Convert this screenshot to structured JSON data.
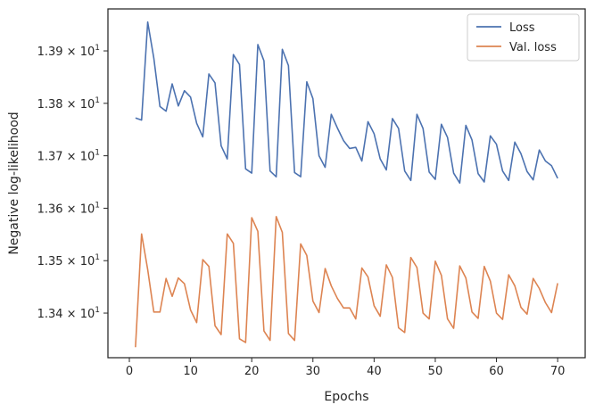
{
  "chart_data": {
    "type": "line",
    "xlabel": "Epochs",
    "ylabel": "Negative log-likelihood",
    "xlim": [
      -3.5,
      74.5
    ],
    "ylim": [
      13.315,
      13.98
    ],
    "x_ticks": [
      0,
      10,
      20,
      30,
      40,
      50,
      60,
      70
    ],
    "y_ticks": [
      {
        "value": 13.4,
        "mantissa": "1.34",
        "base": "10",
        "exp": "1"
      },
      {
        "value": 13.5,
        "mantissa": "1.35",
        "base": "10",
        "exp": "1"
      },
      {
        "value": 13.6,
        "mantissa": "1.36",
        "base": "10",
        "exp": "1"
      },
      {
        "value": 13.7,
        "mantissa": "1.37",
        "base": "10",
        "exp": "1"
      },
      {
        "value": 13.8,
        "mantissa": "1.38",
        "base": "10",
        "exp": "1"
      },
      {
        "value": 13.9,
        "mantissa": "1.39",
        "base": "10",
        "exp": "1"
      }
    ],
    "grid": false,
    "legend_position": "top-right",
    "x": [
      1,
      2,
      3,
      4,
      5,
      6,
      7,
      8,
      9,
      10,
      11,
      12,
      13,
      14,
      15,
      16,
      17,
      18,
      19,
      20,
      21,
      22,
      23,
      24,
      25,
      26,
      27,
      28,
      29,
      30,
      31,
      32,
      33,
      34,
      35,
      36,
      37,
      38,
      39,
      40,
      41,
      42,
      43,
      44,
      45,
      46,
      47,
      48,
      49,
      50,
      51,
      52,
      53,
      54,
      55,
      56,
      57,
      58,
      59,
      60,
      61,
      62,
      63,
      64,
      65,
      66,
      67,
      68,
      69,
      70
    ],
    "series": [
      {
        "name": "Loss",
        "color": "#4c72b0",
        "values": [
          13.772,
          13.768,
          13.955,
          13.886,
          13.794,
          13.785,
          13.837,
          13.795,
          13.824,
          13.812,
          13.762,
          13.736,
          13.856,
          13.839,
          13.719,
          13.694,
          13.893,
          13.874,
          13.675,
          13.667,
          13.912,
          13.881,
          13.671,
          13.66,
          13.903,
          13.872,
          13.668,
          13.66,
          13.841,
          13.809,
          13.7,
          13.678,
          13.779,
          13.753,
          13.729,
          13.714,
          13.716,
          13.69,
          13.765,
          13.742,
          13.694,
          13.673,
          13.771,
          13.752,
          13.671,
          13.653,
          13.779,
          13.752,
          13.669,
          13.655,
          13.76,
          13.735,
          13.667,
          13.648,
          13.758,
          13.73,
          13.666,
          13.65,
          13.738,
          13.722,
          13.671,
          13.653,
          13.726,
          13.704,
          13.67,
          13.654,
          13.711,
          13.69,
          13.681,
          13.657
        ]
      },
      {
        "name": "Val. loss",
        "color": "#dd8452",
        "values": [
          13.335,
          13.551,
          13.483,
          13.402,
          13.402,
          13.466,
          13.432,
          13.467,
          13.456,
          13.406,
          13.382,
          13.502,
          13.489,
          13.376,
          13.359,
          13.551,
          13.533,
          13.351,
          13.344,
          13.582,
          13.556,
          13.366,
          13.348,
          13.584,
          13.554,
          13.361,
          13.348,
          13.532,
          13.51,
          13.423,
          13.401,
          13.485,
          13.452,
          13.428,
          13.41,
          13.41,
          13.389,
          13.486,
          13.469,
          13.414,
          13.394,
          13.492,
          13.468,
          13.372,
          13.363,
          13.506,
          13.487,
          13.4,
          13.389,
          13.499,
          13.472,
          13.389,
          13.371,
          13.49,
          13.467,
          13.402,
          13.39,
          13.489,
          13.461,
          13.4,
          13.388,
          13.473,
          13.452,
          13.411,
          13.398,
          13.466,
          13.447,
          13.42,
          13.401,
          13.457
        ]
      }
    ]
  }
}
